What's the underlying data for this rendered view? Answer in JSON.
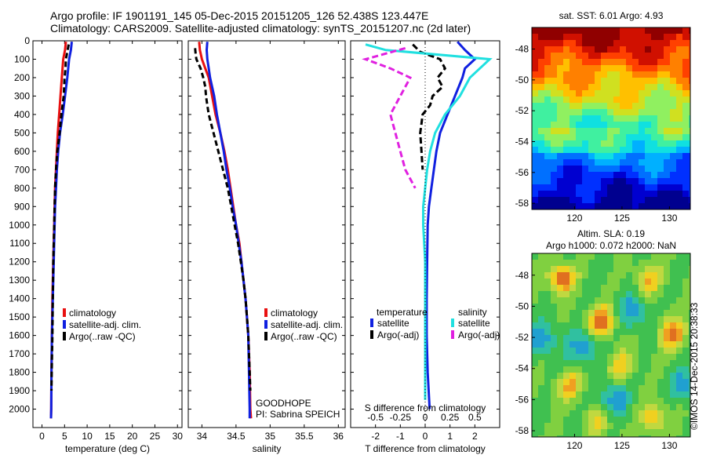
{
  "header": {
    "line1": "Argo profile: IF 1901191_145 05-Dec-2015 20151205_126 52.438S 123.447E",
    "line2": "Climatology: CARS2009. Satellite-adjusted climatology: synTS_20151207.nc (2d later)"
  },
  "colors": {
    "climatology": "#e81010",
    "satellite": "#1020e0",
    "argo": "#000000",
    "s_satellite": "#20e0e0",
    "s_argo": "#e020e0"
  },
  "chart_data": [
    {
      "type": "line",
      "xlabel": "temperature (deg C)",
      "ylabel": "",
      "xlim": [
        -2,
        31
      ],
      "ylim": [
        2100,
        0
      ],
      "xticks": [
        "0",
        "5",
        "10",
        "15",
        "20",
        "25",
        "30"
      ],
      "yticks": [
        "0",
        "100",
        "200",
        "300",
        "400",
        "500",
        "600",
        "700",
        "800",
        "900",
        "1000",
        "1100",
        "1200",
        "1300",
        "1400",
        "1500",
        "1600",
        "1700",
        "1800",
        "1900",
        "2000"
      ],
      "legend": [
        "climatology",
        "satellite-adj. clim.",
        "Argo(..raw -QC)"
      ],
      "series": [
        {
          "name": "climatology",
          "depth": [
            5,
            50,
            100,
            200,
            300,
            400,
            500,
            600,
            700,
            800,
            900,
            1000,
            1200,
            1400,
            1600,
            1800,
            2000,
            2050
          ],
          "values": [
            5.3,
            5.1,
            4.7,
            4.4,
            4.1,
            3.8,
            3.5,
            3.3,
            3.1,
            2.9,
            2.8,
            2.7,
            2.5,
            2.3,
            2.2,
            2.1,
            2.05,
            2.0
          ]
        },
        {
          "name": "satellite-adj. clim.",
          "depth": [
            5,
            50,
            100,
            200,
            300,
            400,
            500,
            600,
            700,
            800,
            900,
            1000,
            1200,
            1400,
            1600,
            1800,
            2000,
            2050
          ],
          "values": [
            6.6,
            6.4,
            6.0,
            5.6,
            5.1,
            4.6,
            4.0,
            3.6,
            3.3,
            3.1,
            2.9,
            2.8,
            2.6,
            2.4,
            2.2,
            2.1,
            2.05,
            2.0
          ]
        },
        {
          "name": "Argo(..raw -QC)",
          "depth": [
            20,
            60,
            100,
            150,
            200,
            300,
            400,
            500,
            600,
            700,
            800,
            900,
            1000,
            1200,
            1400,
            1600,
            1800,
            1900
          ],
          "values": [
            5.9,
            5.6,
            5.3,
            5.2,
            5.0,
            4.8,
            4.3,
            3.9,
            3.4,
            3.1,
            2.9,
            2.8,
            2.7,
            2.5,
            2.4,
            2.3,
            2.15,
            2.1
          ]
        }
      ]
    },
    {
      "type": "line",
      "xlabel": "salinity",
      "ylabel": "",
      "xlim": [
        33.8,
        36.1
      ],
      "ylim": [
        2100,
        0
      ],
      "xticks": [
        "34",
        "34.5",
        "35",
        "35.5",
        "36"
      ],
      "legend": [
        "climatology",
        "satellite-adj. clim.",
        "Argo(..raw -QC)"
      ],
      "annotation": [
        "GOODHOPE",
        "PI: Sabrina SPEICH"
      ],
      "series": [
        {
          "name": "climatology",
          "depth": [
            5,
            50,
            100,
            150,
            200,
            300,
            400,
            500,
            600,
            700,
            800,
            900,
            1000,
            1100,
            1200,
            1300,
            1400,
            1500,
            1600,
            1800,
            2000,
            2050
          ],
          "values": [
            33.96,
            33.97,
            34.0,
            34.05,
            34.1,
            34.15,
            34.2,
            34.27,
            34.33,
            34.38,
            34.42,
            34.46,
            34.5,
            34.55,
            34.58,
            34.61,
            34.64,
            34.66,
            34.68,
            34.7,
            34.71,
            34.72
          ]
        },
        {
          "name": "satellite-adj. clim.",
          "depth": [
            5,
            50,
            100,
            150,
            200,
            300,
            400,
            500,
            600,
            700,
            800,
            900,
            1000,
            1100,
            1200,
            1300,
            1400,
            1500,
            1600,
            1800,
            2000,
            2050
          ],
          "values": [
            34.08,
            34.07,
            34.08,
            34.1,
            34.12,
            34.18,
            34.22,
            34.27,
            34.32,
            34.36,
            34.41,
            34.45,
            34.5,
            34.54,
            34.58,
            34.61,
            34.64,
            34.66,
            34.68,
            34.69,
            34.7,
            34.7
          ]
        },
        {
          "name": "Argo(..raw -QC)",
          "depth": [
            40,
            80,
            100,
            150,
            200,
            250,
            300,
            350,
            400,
            500,
            600,
            700,
            800,
            900,
            1000,
            1100,
            1200,
            1300,
            1400,
            1500,
            1600,
            1800,
            1900
          ],
          "values": [
            33.9,
            33.91,
            33.92,
            33.98,
            34.02,
            34.05,
            34.06,
            34.08,
            34.1,
            34.17,
            34.24,
            34.31,
            34.38,
            34.43,
            34.48,
            34.53,
            34.57,
            34.61,
            34.64,
            34.66,
            34.68,
            34.7,
            34.71
          ]
        }
      ]
    },
    {
      "type": "line",
      "xlabel": "T difference from climatology",
      "x2label": "S difference from climatology",
      "xlim": [
        -3.0,
        3.0
      ],
      "ylim": [
        2100,
        0
      ],
      "xticks": [
        "-2",
        "-1",
        "0",
        "1",
        "2"
      ],
      "x2ticks": [
        "-0.5",
        "-0.25",
        "0",
        "0.25",
        "0.5"
      ],
      "legend_headers": [
        "temperature",
        "salinity"
      ],
      "legend": [
        "satellite",
        "Argo(-adj)",
        "satellite",
        "Argo(-adj)"
      ],
      "series": [
        {
          "name": "satellite",
          "depth": [
            5,
            50,
            100,
            150,
            200,
            300,
            400,
            500,
            600,
            700,
            800,
            900,
            1000,
            1200,
            1400,
            1600,
            1800,
            2000
          ],
          "values": [
            1.3,
            1.6,
            2.0,
            1.6,
            1.5,
            1.2,
            0.9,
            0.6,
            0.45,
            0.35,
            0.25,
            0.15,
            0.1,
            0.08,
            0.06,
            0.06,
            0.1,
            0.18
          ]
        },
        {
          "name": "Argo(-adj)",
          "depth": [
            20,
            60,
            100,
            150,
            200,
            250,
            300,
            350,
            400,
            450,
            500,
            600,
            700
          ],
          "values": [
            -0.5,
            -0.2,
            0.6,
            0.8,
            0.5,
            0.7,
            0.3,
            0.2,
            -0.1,
            -0.15,
            -0.2,
            -0.15,
            -0.1
          ]
        },
        {
          "name": "satellite",
          "depth": [
            20,
            50,
            100,
            150,
            200,
            300,
            400,
            500,
            600,
            700,
            800,
            900,
            1000,
            1200,
            1400,
            1600,
            1800,
            1950
          ],
          "values": [
            -0.6,
            -0.4,
            0.65,
            0.55,
            0.45,
            0.35,
            0.2,
            0.1,
            0.05,
            0.02,
            0.0,
            -0.02,
            -0.02,
            0.0,
            0.0,
            0.0,
            0.0,
            0.0
          ]
        },
        {
          "name": "Argo(-adj)",
          "depth": [
            40,
            100,
            150,
            200,
            300,
            400,
            500,
            600,
            700,
            800
          ],
          "values": [
            -0.2,
            -0.6,
            -0.35,
            -0.15,
            -0.25,
            -0.35,
            -0.3,
            -0.25,
            -0.2,
            -0.1
          ]
        }
      ]
    },
    {
      "type": "heatmap",
      "title": "sat. SST: 6.01  Argo: 4.93",
      "xlim": [
        115.5,
        132.2
      ],
      "ylim": [
        -58.4,
        -46.6
      ],
      "xticks": [
        "120",
        "125",
        "130"
      ],
      "yticks": [
        "-48",
        "-50",
        "-52",
        "-54",
        "-56",
        "-58"
      ]
    },
    {
      "type": "heatmap",
      "title_lines": [
        "Altim. SLA: 0.19",
        "Argo h1000: 0.072  h2000: NaN"
      ],
      "xlim": [
        115.5,
        132.2
      ],
      "ylim": [
        -58.4,
        -46.6
      ],
      "xticks": [
        "120",
        "125",
        "130"
      ],
      "yticks": [
        "-48",
        "-50",
        "-52",
        "-54",
        "-56",
        "-58"
      ]
    }
  ],
  "credit": "©IMOS 14-Dec-2015 20:38:33"
}
